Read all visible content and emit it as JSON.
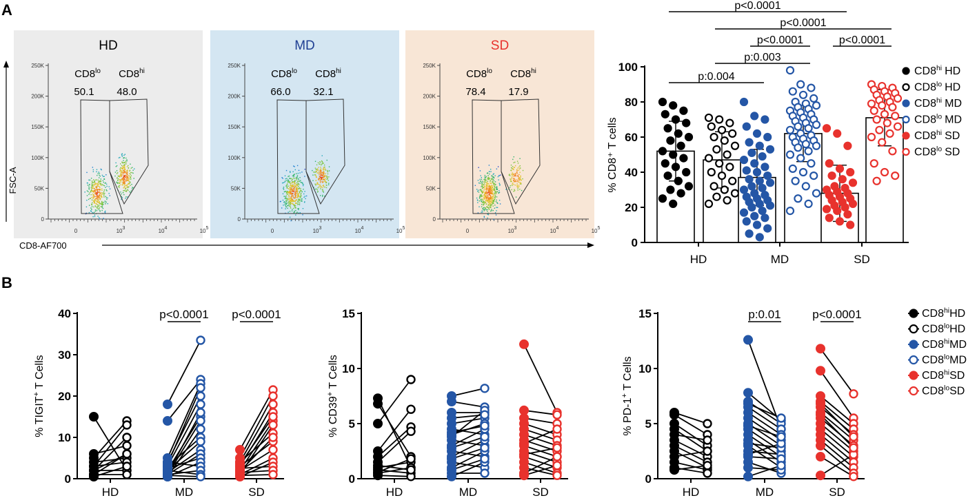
{
  "panel_labels": {
    "a": "A",
    "b": "B"
  },
  "flow": {
    "y_axis_label": "FSC-A",
    "x_axis_label": "CD8-AF700",
    "y_ticks": [
      "250K",
      "200K",
      "150K",
      "100K",
      "50K",
      "0"
    ],
    "x_ticks": [
      {
        "base": "0",
        "exp": ""
      },
      {
        "base": "10",
        "exp": "3"
      },
      {
        "base": "10",
        "exp": "4"
      },
      {
        "base": "10",
        "exp": "5"
      }
    ],
    "gate_lo_label": {
      "base": "CD8",
      "sup": "lo"
    },
    "gate_hi_label": {
      "base": "CD8",
      "sup": "hi"
    },
    "plots": [
      {
        "title": "HD",
        "title_color": "#000000",
        "bg": "#ececec",
        "lo_pct": "50.1",
        "hi_pct": "48.0"
      },
      {
        "title": "MD",
        "title_color": "#1f3f93",
        "bg": "#d4e6f2",
        "lo_pct": "66.0",
        "hi_pct": "32.1"
      },
      {
        "title": "SD",
        "title_color": "#e8322d",
        "bg": "#f8e6d6",
        "lo_pct": "78.4",
        "hi_pct": "17.9"
      }
    ]
  },
  "chart_data": [
    {
      "type": "bar",
      "id": "A-right",
      "ylabel": "% CD8⁺ T cells",
      "ylim": [
        0,
        100
      ],
      "yticks": [
        "0",
        "20",
        "40",
        "60",
        "80",
        "100"
      ],
      "categories": [
        "HD",
        "MD",
        "SD"
      ],
      "series": [
        {
          "name": "CD8hi HD",
          "group": "HD",
          "sub": "hi",
          "color": "#000000",
          "filled": true,
          "mean": 52,
          "sd": 17,
          "points": [
            80,
            78,
            75,
            73,
            70,
            68,
            65,
            62,
            60,
            58,
            55,
            52,
            50,
            48,
            45,
            43,
            40,
            38,
            35,
            32,
            30,
            28,
            25,
            22
          ]
        },
        {
          "name": "CD8lo HD",
          "group": "HD",
          "sub": "lo",
          "color": "#000000",
          "filled": false,
          "mean": 47,
          "sd": 16,
          "points": [
            71,
            70,
            68,
            66,
            64,
            62,
            60,
            58,
            55,
            53,
            50,
            48,
            45,
            43,
            40,
            38,
            35,
            32,
            30,
            28,
            26,
            24,
            22
          ]
        },
        {
          "name": "CD8hi MD",
          "group": "MD",
          "sub": "hi",
          "color": "#2456a6",
          "filled": true,
          "mean": 37,
          "sd": 16,
          "points": [
            80,
            72,
            70,
            66,
            62,
            60,
            57,
            55,
            53,
            51,
            49,
            47,
            45,
            43,
            41,
            40,
            38,
            36,
            35,
            34,
            32,
            31,
            30,
            28,
            27,
            26,
            25,
            24,
            23,
            22,
            21,
            20,
            18,
            17,
            15,
            14,
            12,
            10,
            8,
            5,
            3
          ]
        },
        {
          "name": "CD8lo MD",
          "group": "MD",
          "sub": "lo",
          "color": "#2456a6",
          "filled": false,
          "mean": 62,
          "sd": 16,
          "points": [
            98,
            90,
            88,
            86,
            84,
            82,
            80,
            79,
            78,
            77,
            76,
            75,
            74,
            73,
            72,
            71,
            70,
            69,
            68,
            67,
            66,
            65,
            64,
            62,
            61,
            60,
            59,
            58,
            57,
            56,
            55,
            54,
            52,
            50,
            48,
            45,
            42,
            40,
            38,
            35,
            32,
            28,
            25,
            22,
            18
          ]
        },
        {
          "name": "CD8hi SD",
          "group": "SD",
          "sub": "hi",
          "color": "#e8322d",
          "filled": true,
          "mean": 28,
          "sd": 16,
          "points": [
            65,
            62,
            55,
            45,
            42,
            40,
            38,
            36,
            34,
            32,
            31,
            30,
            29,
            28,
            27,
            26,
            25,
            24,
            23,
            22,
            21,
            20,
            19,
            18,
            16,
            14,
            12,
            10
          ]
        },
        {
          "name": "CD8lo SD",
          "group": "SD",
          "sub": "lo",
          "color": "#e8322d",
          "filled": false,
          "mean": 71,
          "sd": 16,
          "points": [
            90,
            89,
            88,
            87,
            86,
            85,
            84,
            83,
            82,
            81,
            80,
            79,
            78,
            77,
            75,
            73,
            72,
            70,
            68,
            66,
            64,
            62,
            60,
            57,
            52,
            45,
            40,
            38,
            35
          ]
        }
      ],
      "annotations": [
        {
          "text": "p<0.0001",
          "from": 0,
          "to": 4,
          "level": 0
        },
        {
          "text": "p<0.0001",
          "from": 1,
          "to": 5,
          "level": 1
        },
        {
          "text": "p<0.0001",
          "from": 2,
          "to": 3,
          "level": 2
        },
        {
          "text": "p<0.0001",
          "from": 4,
          "to": 5,
          "level": 2
        },
        {
          "text": "p:0.003",
          "from": 1,
          "to": 3,
          "level": 3
        },
        {
          "text": "p:0.004",
          "from": 0,
          "to": 2,
          "level": 4
        }
      ]
    },
    {
      "type": "paired-line",
      "id": "B-tigit",
      "ylabel_base": "% TIGIT",
      "ylabel_tail": " T Cells",
      "ylim": [
        0,
        40
      ],
      "yticks": [
        "0",
        "10",
        "20",
        "30",
        "40"
      ],
      "categories": [
        "HD",
        "MD",
        "SD"
      ],
      "groups": [
        {
          "name": "HD",
          "color": "#000000",
          "pairs": [
            [
              15,
              2
            ],
            [
              5,
              14
            ],
            [
              3,
              13
            ],
            [
              2,
              10
            ],
            [
              6,
              8
            ],
            [
              1,
              6
            ],
            [
              4,
              5
            ],
            [
              2,
              2
            ],
            [
              1,
              1
            ],
            [
              3,
              4
            ],
            [
              0.5,
              3
            ],
            [
              2,
              6
            ]
          ]
        },
        {
          "name": "MD",
          "color": "#2456a6",
          "pairs": [
            [
              18,
              33.5
            ],
            [
              14,
              24
            ],
            [
              5,
              23
            ],
            [
              4,
              20
            ],
            [
              3,
              18
            ],
            [
              2,
              15
            ],
            [
              1,
              14
            ],
            [
              0.5,
              12
            ],
            [
              3,
              10
            ],
            [
              2,
              9
            ],
            [
              1.5,
              7
            ],
            [
              1,
              6
            ],
            [
              2.5,
              5
            ],
            [
              0.5,
              4
            ],
            [
              4,
              3
            ],
            [
              1,
              2
            ],
            [
              2,
              1
            ],
            [
              0.8,
              0.5
            ],
            [
              3.5,
              22
            ],
            [
              1.2,
              16
            ]
          ]
        },
        {
          "name": "SD",
          "color": "#e8322d",
          "pairs": [
            [
              7,
              21.5
            ],
            [
              5,
              20
            ],
            [
              4,
              18
            ],
            [
              3,
              16
            ],
            [
              2,
              14
            ],
            [
              1,
              13
            ],
            [
              4,
              11
            ],
            [
              3,
              9
            ],
            [
              2,
              7
            ],
            [
              1,
              5
            ],
            [
              0.5,
              4
            ],
            [
              2.5,
              3
            ],
            [
              1.5,
              2
            ],
            [
              0.8,
              1
            ],
            [
              3.5,
              15
            ],
            [
              1.8,
              10
            ]
          ]
        }
      ],
      "annotations": [
        {
          "text": "p<0.0001",
          "group": 1
        },
        {
          "text": "p<0.0001",
          "group": 2
        }
      ]
    },
    {
      "type": "paired-line",
      "id": "B-cd39",
      "ylabel_base": "% CD39",
      "ylabel_tail": " T Cells",
      "ylim": [
        0,
        15
      ],
      "yticks": [
        "0",
        "5",
        "10",
        "15"
      ],
      "categories": [
        "HD",
        "MD",
        "SD"
      ],
      "groups": [
        {
          "name": "HD",
          "color": "#000000",
          "pairs": [
            [
              7.3,
              1
            ],
            [
              6.8,
              2
            ],
            [
              5,
              9
            ],
            [
              2.5,
              6.3
            ],
            [
              2,
              4.7
            ],
            [
              1.5,
              4.3
            ],
            [
              1,
              1.5
            ],
            [
              0.8,
              0.5
            ],
            [
              0.5,
              1
            ],
            [
              0.3,
              0.2
            ],
            [
              1.2,
              0.8
            ],
            [
              0.6,
              1.8
            ]
          ]
        },
        {
          "name": "MD",
          "color": "#2456a6",
          "pairs": [
            [
              7.5,
              8.2
            ],
            [
              7,
              6.5
            ],
            [
              6,
              6
            ],
            [
              5,
              5.5
            ],
            [
              4.5,
              4
            ],
            [
              4,
              5
            ],
            [
              3.5,
              3
            ],
            [
              3,
              4.5
            ],
            [
              2.5,
              2
            ],
            [
              2,
              3.5
            ],
            [
              1.5,
              1
            ],
            [
              1,
              2.5
            ],
            [
              0.5,
              0.5
            ],
            [
              0.2,
              1.5
            ],
            [
              3.8,
              6.2
            ],
            [
              2.8,
              3.8
            ],
            [
              1.8,
              2.8
            ],
            [
              0.8,
              1.8
            ],
            [
              5.5,
              5.8
            ],
            [
              4.2,
              4.8
            ]
          ]
        },
        {
          "name": "SD",
          "color": "#e8322d",
          "pairs": [
            [
              12.2,
              6
            ],
            [
              6.2,
              5.8
            ],
            [
              5.5,
              5
            ],
            [
              5,
              4
            ],
            [
              4.5,
              3.5
            ],
            [
              4,
              3
            ],
            [
              3.5,
              2.5
            ],
            [
              3,
              2
            ],
            [
              2.5,
              1.5
            ],
            [
              2,
              1
            ],
            [
              1.5,
              0.5
            ],
            [
              1,
              0.3
            ],
            [
              0.5,
              2
            ],
            [
              0.3,
              1.2
            ],
            [
              3.2,
              4.5
            ],
            [
              2.2,
              2.8
            ]
          ]
        }
      ]
    },
    {
      "type": "paired-line",
      "id": "B-pd1",
      "ylabel_base": "% PD-1",
      "ylabel_tail": " T Cells",
      "ylim": [
        0,
        15
      ],
      "yticks": [
        "0",
        "5",
        "10",
        "15"
      ],
      "categories": [
        "HD",
        "MD",
        "SD"
      ],
      "groups": [
        {
          "name": "HD",
          "color": "#000000",
          "pairs": [
            [
              6,
              5
            ],
            [
              5.8,
              4
            ],
            [
              5,
              3
            ],
            [
              4.5,
              2.5
            ],
            [
              4,
              3.5
            ],
            [
              3.5,
              2
            ],
            [
              3,
              1.5
            ],
            [
              2.5,
              1
            ],
            [
              2,
              2.5
            ],
            [
              1.5,
              0.8
            ],
            [
              1,
              0.5
            ],
            [
              0.8,
              1.2
            ]
          ]
        },
        {
          "name": "MD",
          "color": "#2456a6",
          "pairs": [
            [
              12.6,
              4.5
            ],
            [
              7.8,
              5.3
            ],
            [
              7,
              5
            ],
            [
              6.5,
              4.5
            ],
            [
              6,
              4
            ],
            [
              5.5,
              3.5
            ],
            [
              5,
              3
            ],
            [
              4.5,
              2.5
            ],
            [
              4,
              2
            ],
            [
              3.5,
              1.5
            ],
            [
              3,
              1
            ],
            [
              2.5,
              2.2
            ],
            [
              2,
              1.8
            ],
            [
              1.5,
              0.5
            ],
            [
              1,
              0.8
            ],
            [
              0.2,
              1.2
            ],
            [
              3.2,
              2.8
            ],
            [
              2.2,
              3.2
            ],
            [
              6.8,
              5.5
            ],
            [
              4.8,
              3.8
            ]
          ]
        },
        {
          "name": "SD",
          "color": "#e8322d",
          "pairs": [
            [
              11.8,
              7.7
            ],
            [
              9.8,
              5.5
            ],
            [
              7.5,
              5
            ],
            [
              7,
              4.5
            ],
            [
              6.5,
              4
            ],
            [
              6,
              3.5
            ],
            [
              5.5,
              3
            ],
            [
              5,
              2.5
            ],
            [
              4.5,
              2
            ],
            [
              4,
              1.5
            ],
            [
              3.5,
              1
            ],
            [
              3,
              0.5
            ],
            [
              2,
              0.2
            ],
            [
              0.3,
              2.2
            ],
            [
              6.8,
              3.8
            ],
            [
              5.8,
              2.8
            ]
          ]
        }
      ],
      "annotations": [
        {
          "text": "p:0.01",
          "group": 1
        },
        {
          "text": "p<0.0001",
          "group": 2
        }
      ]
    }
  ],
  "legend_A": [
    {
      "base": "CD8",
      "sup": "hi",
      "group": "HD",
      "color": "#000000",
      "filled": true
    },
    {
      "base": "CD8",
      "sup": "lo",
      "group": "HD",
      "color": "#000000",
      "filled": false
    },
    {
      "base": "CD8",
      "sup": "hi",
      "group": "MD",
      "color": "#2456a6",
      "filled": true
    },
    {
      "base": "CD8",
      "sup": "lo",
      "group": "MD",
      "color": "#2456a6",
      "filled": false
    },
    {
      "base": "CD8",
      "sup": "hi",
      "group": "SD",
      "color": "#e8322d",
      "filled": true
    },
    {
      "base": "CD8",
      "sup": "lo",
      "group": "SD",
      "color": "#e8322d",
      "filled": false
    }
  ],
  "legend_B": [
    {
      "base": "CD8",
      "sup": "hi",
      "group": "HD",
      "color": "#000000",
      "filled": true
    },
    {
      "base": "CD8",
      "sup": "lo",
      "group": "HD",
      "color": "#000000",
      "filled": false
    },
    {
      "base": "CD8",
      "sup": "hi",
      "group": "MD",
      "color": "#2456a6",
      "filled": true
    },
    {
      "base": "CD8",
      "sup": "lo",
      "group": "MD",
      "color": "#2456a6",
      "filled": false
    },
    {
      "base": "CD8",
      "sup": "hi",
      "group": "SD",
      "color": "#e8322d",
      "filled": true
    },
    {
      "base": "CD8",
      "sup": "lo",
      "group": "SD",
      "color": "#e8322d",
      "filled": false
    }
  ]
}
